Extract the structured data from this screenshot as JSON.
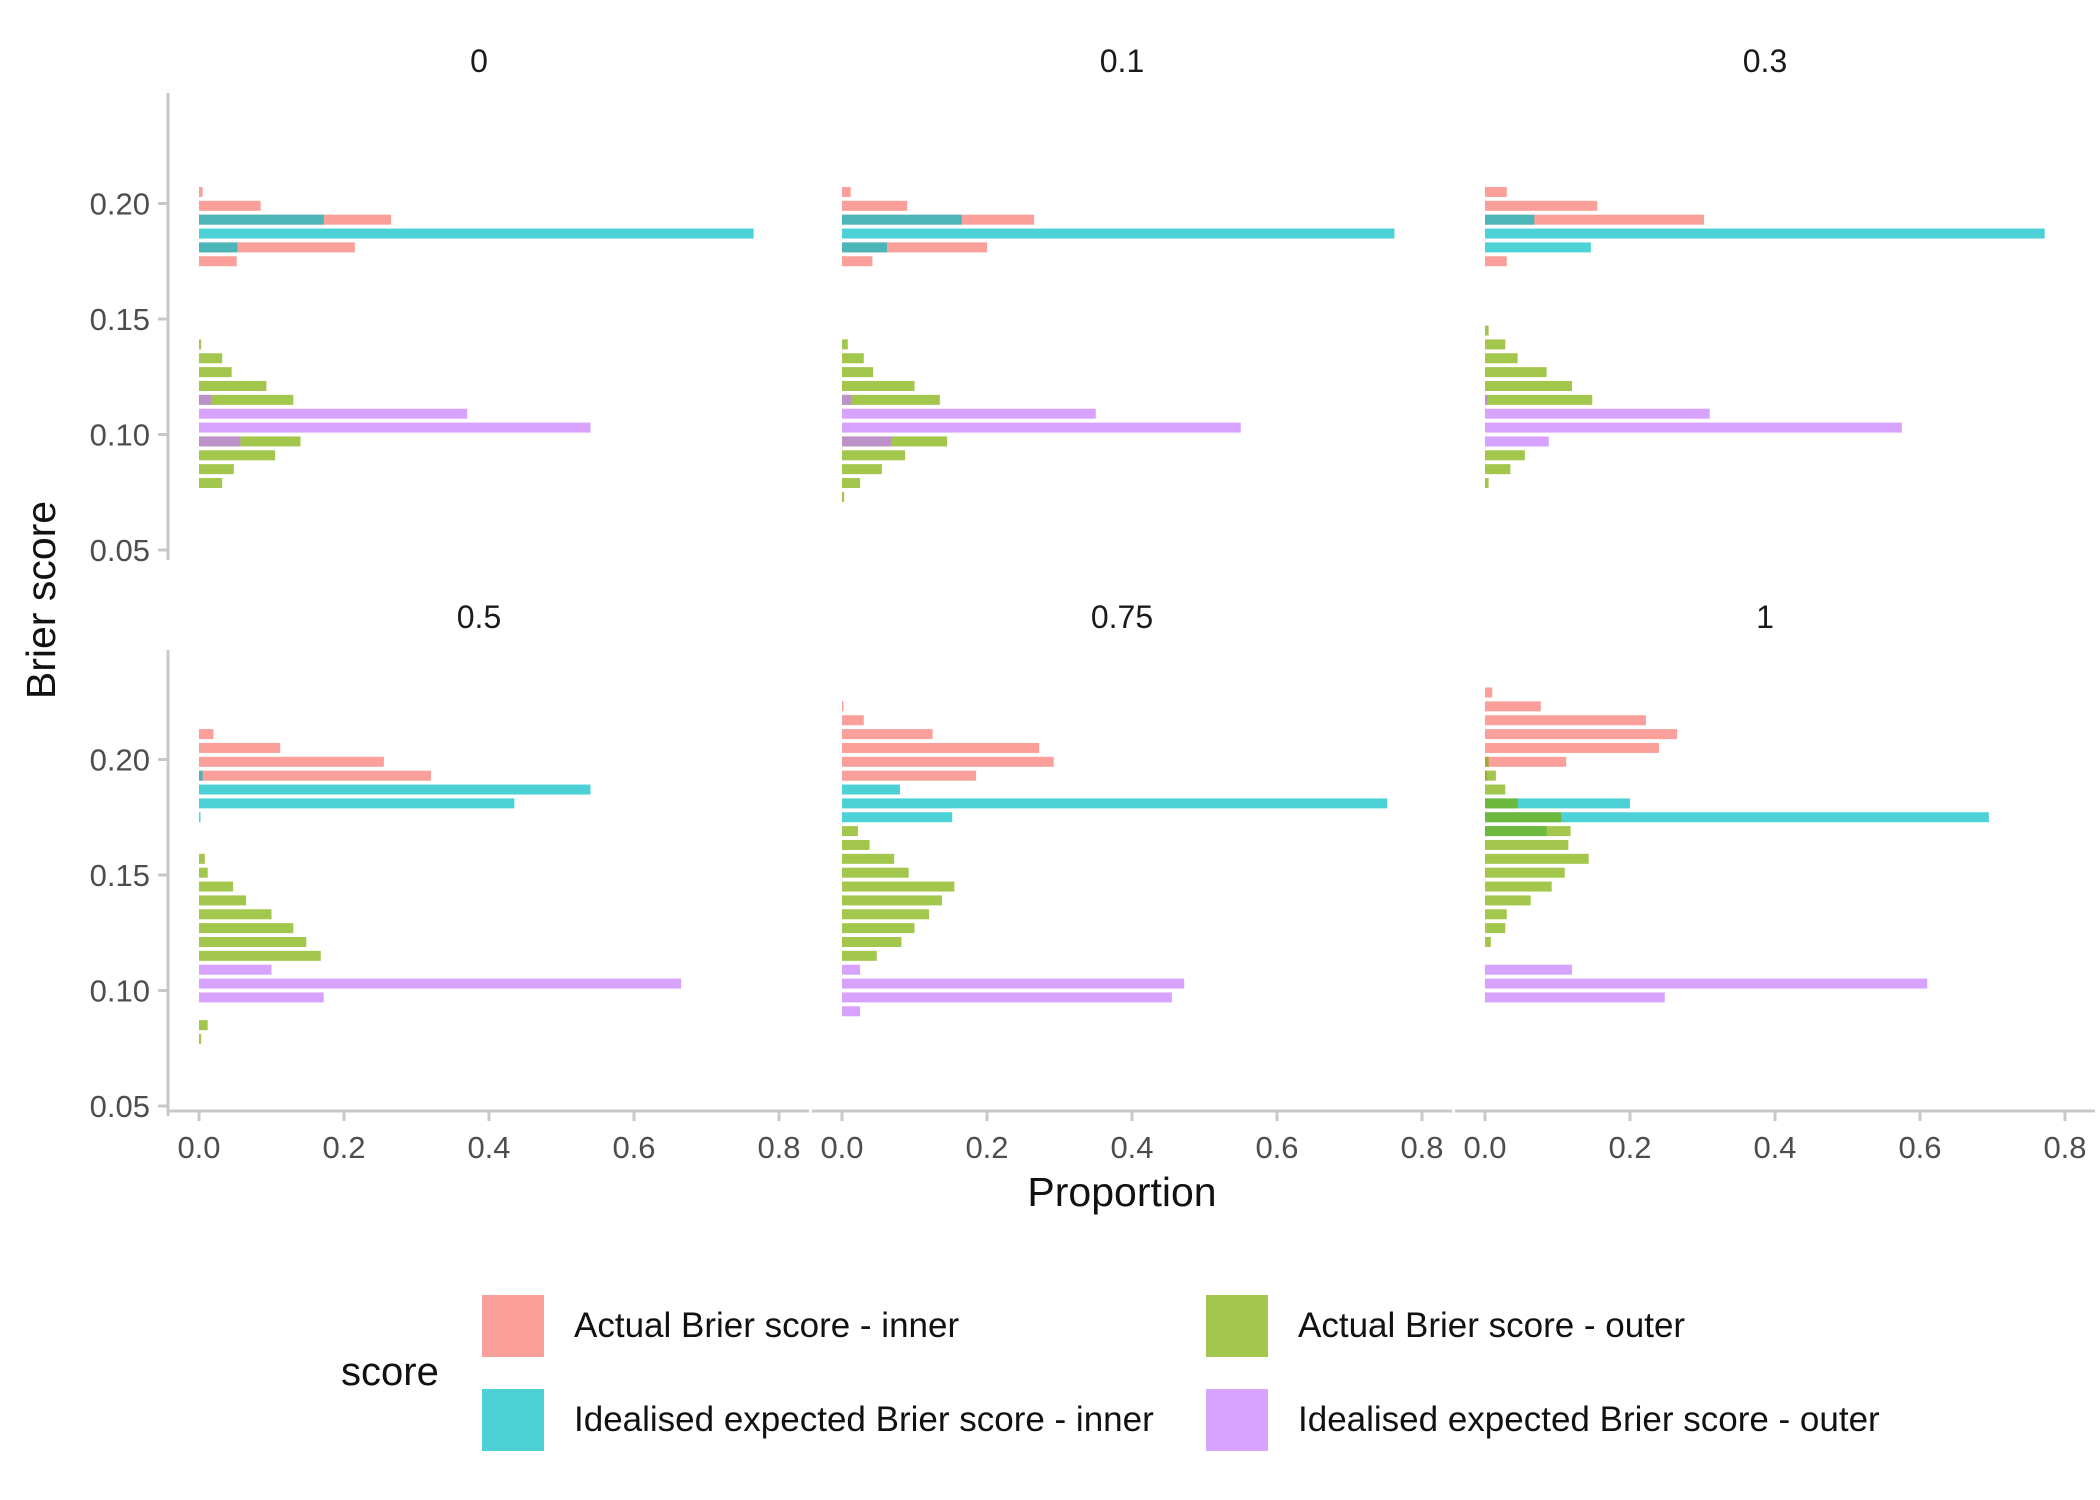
{
  "chart_data": {
    "type": "bar",
    "orientation": "horizontal",
    "layout": "facet-2x3",
    "xlabel": "Proportion",
    "ylabel": "Brier score",
    "xlim": [
      0,
      0.8
    ],
    "ylim": [
      0.05,
      0.25
    ],
    "x_ticks": [
      "0.0",
      "0.2",
      "0.4",
      "0.6",
      "0.8"
    ],
    "y_ticks": [
      "0.05",
      "0.10",
      "0.15",
      "0.20"
    ],
    "y_tick_values": [
      0.05,
      0.1,
      0.15,
      0.2
    ],
    "legend_title": "score",
    "legend_position": "bottom",
    "series": [
      {
        "name": "Actual Brier score - inner",
        "color": "#F8766D"
      },
      {
        "name": "Idealised expected Brier score - inner",
        "color": "#00BFC4"
      },
      {
        "name": "Actual Brier score - outer",
        "color": "#7CAE00"
      },
      {
        "name": "Idealised expected Brier score - outer",
        "color": "#C77CFF"
      }
    ],
    "panels": [
      {
        "title": "0",
        "bars": [
          {
            "series": 0,
            "y": 0.205,
            "value": 0.005
          },
          {
            "series": 0,
            "y": 0.199,
            "value": 0.085
          },
          {
            "series": 0,
            "y": 0.193,
            "value": 0.265
          },
          {
            "series": 0,
            "y": 0.181,
            "value": 0.215
          },
          {
            "series": 0,
            "y": 0.175,
            "value": 0.052
          },
          {
            "series": 1,
            "y": 0.193,
            "value": 0.172
          },
          {
            "series": 1,
            "y": 0.187,
            "value": 0.765
          },
          {
            "series": 1,
            "y": 0.181,
            "value": 0.053
          },
          {
            "series": 2,
            "y": 0.139,
            "value": 0.003
          },
          {
            "series": 2,
            "y": 0.133,
            "value": 0.032
          },
          {
            "series": 2,
            "y": 0.127,
            "value": 0.045
          },
          {
            "series": 2,
            "y": 0.121,
            "value": 0.093
          },
          {
            "series": 2,
            "y": 0.115,
            "value": 0.13
          },
          {
            "series": 2,
            "y": 0.097,
            "value": 0.14
          },
          {
            "series": 2,
            "y": 0.091,
            "value": 0.105
          },
          {
            "series": 2,
            "y": 0.085,
            "value": 0.048
          },
          {
            "series": 2,
            "y": 0.079,
            "value": 0.032
          },
          {
            "series": 3,
            "y": 0.115,
            "value": 0.017
          },
          {
            "series": 3,
            "y": 0.109,
            "value": 0.37
          },
          {
            "series": 3,
            "y": 0.103,
            "value": 0.54
          },
          {
            "series": 3,
            "y": 0.097,
            "value": 0.057
          }
        ]
      },
      {
        "title": "0.1",
        "bars": [
          {
            "series": 0,
            "y": 0.205,
            "value": 0.012
          },
          {
            "series": 0,
            "y": 0.199,
            "value": 0.09
          },
          {
            "series": 0,
            "y": 0.193,
            "value": 0.265
          },
          {
            "series": 0,
            "y": 0.181,
            "value": 0.2
          },
          {
            "series": 0,
            "y": 0.175,
            "value": 0.042
          },
          {
            "series": 1,
            "y": 0.193,
            "value": 0.165
          },
          {
            "series": 1,
            "y": 0.187,
            "value": 0.762
          },
          {
            "series": 1,
            "y": 0.181,
            "value": 0.062
          },
          {
            "series": 2,
            "y": 0.139,
            "value": 0.008
          },
          {
            "series": 2,
            "y": 0.133,
            "value": 0.03
          },
          {
            "series": 2,
            "y": 0.127,
            "value": 0.043
          },
          {
            "series": 2,
            "y": 0.121,
            "value": 0.1
          },
          {
            "series": 2,
            "y": 0.115,
            "value": 0.135
          },
          {
            "series": 2,
            "y": 0.097,
            "value": 0.145
          },
          {
            "series": 2,
            "y": 0.091,
            "value": 0.087
          },
          {
            "series": 2,
            "y": 0.085,
            "value": 0.055
          },
          {
            "series": 2,
            "y": 0.079,
            "value": 0.025
          },
          {
            "series": 2,
            "y": 0.073,
            "value": 0.003
          },
          {
            "series": 3,
            "y": 0.115,
            "value": 0.013
          },
          {
            "series": 3,
            "y": 0.109,
            "value": 0.35
          },
          {
            "series": 3,
            "y": 0.103,
            "value": 0.55
          },
          {
            "series": 3,
            "y": 0.097,
            "value": 0.068
          }
        ]
      },
      {
        "title": "0.3",
        "bars": [
          {
            "series": 0,
            "y": 0.205,
            "value": 0.03
          },
          {
            "series": 0,
            "y": 0.199,
            "value": 0.155
          },
          {
            "series": 0,
            "y": 0.193,
            "value": 0.302
          },
          {
            "series": 0,
            "y": 0.175,
            "value": 0.03
          },
          {
            "series": 1,
            "y": 0.193,
            "value": 0.068
          },
          {
            "series": 1,
            "y": 0.187,
            "value": 0.772
          },
          {
            "series": 1,
            "y": 0.181,
            "value": 0.146
          },
          {
            "series": 2,
            "y": 0.145,
            "value": 0.005
          },
          {
            "series": 2,
            "y": 0.139,
            "value": 0.028
          },
          {
            "series": 2,
            "y": 0.133,
            "value": 0.045
          },
          {
            "series": 2,
            "y": 0.127,
            "value": 0.085
          },
          {
            "series": 2,
            "y": 0.121,
            "value": 0.12
          },
          {
            "series": 2,
            "y": 0.115,
            "value": 0.148
          },
          {
            "series": 2,
            "y": 0.091,
            "value": 0.055
          },
          {
            "series": 2,
            "y": 0.085,
            "value": 0.035
          },
          {
            "series": 2,
            "y": 0.079,
            "value": 0.005
          },
          {
            "series": 3,
            "y": 0.115,
            "value": 0.003
          },
          {
            "series": 3,
            "y": 0.109,
            "value": 0.31
          },
          {
            "series": 3,
            "y": 0.103,
            "value": 0.575
          },
          {
            "series": 3,
            "y": 0.097,
            "value": 0.088
          }
        ]
      },
      {
        "title": "0.5",
        "bars": [
          {
            "series": 0,
            "y": 0.211,
            "value": 0.02
          },
          {
            "series": 0,
            "y": 0.205,
            "value": 0.112
          },
          {
            "series": 0,
            "y": 0.199,
            "value": 0.255
          },
          {
            "series": 0,
            "y": 0.193,
            "value": 0.32
          },
          {
            "series": 1,
            "y": 0.193,
            "value": 0.005
          },
          {
            "series": 1,
            "y": 0.187,
            "value": 0.54
          },
          {
            "series": 1,
            "y": 0.181,
            "value": 0.435
          },
          {
            "series": 1,
            "y": 0.175,
            "value": 0.002
          },
          {
            "series": 2,
            "y": 0.157,
            "value": 0.008
          },
          {
            "series": 2,
            "y": 0.151,
            "value": 0.012
          },
          {
            "series": 2,
            "y": 0.145,
            "value": 0.047
          },
          {
            "series": 2,
            "y": 0.139,
            "value": 0.065
          },
          {
            "series": 2,
            "y": 0.133,
            "value": 0.1
          },
          {
            "series": 2,
            "y": 0.127,
            "value": 0.13
          },
          {
            "series": 2,
            "y": 0.121,
            "value": 0.148
          },
          {
            "series": 2,
            "y": 0.115,
            "value": 0.168
          },
          {
            "series": 2,
            "y": 0.085,
            "value": 0.012
          },
          {
            "series": 2,
            "y": 0.079,
            "value": 0.003
          },
          {
            "series": 3,
            "y": 0.109,
            "value": 0.1
          },
          {
            "series": 3,
            "y": 0.103,
            "value": 0.665
          },
          {
            "series": 3,
            "y": 0.097,
            "value": 0.172
          }
        ]
      },
      {
        "title": "0.75",
        "bars": [
          {
            "series": 0,
            "y": 0.223,
            "value": 0.002
          },
          {
            "series": 0,
            "y": 0.217,
            "value": 0.03
          },
          {
            "series": 0,
            "y": 0.211,
            "value": 0.125
          },
          {
            "series": 0,
            "y": 0.205,
            "value": 0.272
          },
          {
            "series": 0,
            "y": 0.199,
            "value": 0.292
          },
          {
            "series": 0,
            "y": 0.193,
            "value": 0.185
          },
          {
            "series": 1,
            "y": 0.187,
            "value": 0.08
          },
          {
            "series": 1,
            "y": 0.181,
            "value": 0.752
          },
          {
            "series": 1,
            "y": 0.175,
            "value": 0.152
          },
          {
            "series": 2,
            "y": 0.169,
            "value": 0.022
          },
          {
            "series": 2,
            "y": 0.163,
            "value": 0.038
          },
          {
            "series": 2,
            "y": 0.157,
            "value": 0.072
          },
          {
            "series": 2,
            "y": 0.151,
            "value": 0.092
          },
          {
            "series": 2,
            "y": 0.145,
            "value": 0.155
          },
          {
            "series": 2,
            "y": 0.139,
            "value": 0.138
          },
          {
            "series": 2,
            "y": 0.133,
            "value": 0.12
          },
          {
            "series": 2,
            "y": 0.127,
            "value": 0.1
          },
          {
            "series": 2,
            "y": 0.121,
            "value": 0.082
          },
          {
            "series": 2,
            "y": 0.115,
            "value": 0.048
          },
          {
            "series": 3,
            "y": 0.109,
            "value": 0.025
          },
          {
            "series": 3,
            "y": 0.103,
            "value": 0.472
          },
          {
            "series": 3,
            "y": 0.097,
            "value": 0.455
          },
          {
            "series": 3,
            "y": 0.091,
            "value": 0.025
          }
        ]
      },
      {
        "title": "1",
        "bars": [
          {
            "series": 0,
            "y": 0.229,
            "value": 0.01
          },
          {
            "series": 0,
            "y": 0.223,
            "value": 0.077
          },
          {
            "series": 0,
            "y": 0.217,
            "value": 0.222
          },
          {
            "series": 0,
            "y": 0.211,
            "value": 0.265
          },
          {
            "series": 0,
            "y": 0.205,
            "value": 0.24
          },
          {
            "series": 0,
            "y": 0.199,
            "value": 0.112
          },
          {
            "series": 0,
            "y": 0.193,
            "value": 0.003
          },
          {
            "series": 1,
            "y": 0.181,
            "value": 0.2
          },
          {
            "series": 1,
            "y": 0.175,
            "value": 0.695
          },
          {
            "series": 1,
            "y": 0.169,
            "value": 0.085
          },
          {
            "series": 2,
            "y": 0.199,
            "value": 0.005
          },
          {
            "series": 2,
            "y": 0.193,
            "value": 0.015
          },
          {
            "series": 2,
            "y": 0.187,
            "value": 0.028
          },
          {
            "series": 2,
            "y": 0.181,
            "value": 0.045
          },
          {
            "series": 2,
            "y": 0.175,
            "value": 0.105
          },
          {
            "series": 2,
            "y": 0.169,
            "value": 0.118
          },
          {
            "series": 2,
            "y": 0.163,
            "value": 0.115
          },
          {
            "series": 2,
            "y": 0.157,
            "value": 0.143
          },
          {
            "series": 2,
            "y": 0.151,
            "value": 0.11
          },
          {
            "series": 2,
            "y": 0.145,
            "value": 0.092
          },
          {
            "series": 2,
            "y": 0.139,
            "value": 0.063
          },
          {
            "series": 2,
            "y": 0.133,
            "value": 0.03
          },
          {
            "series": 2,
            "y": 0.127,
            "value": 0.028
          },
          {
            "series": 2,
            "y": 0.121,
            "value": 0.008
          },
          {
            "series": 3,
            "y": 0.109,
            "value": 0.12
          },
          {
            "series": 3,
            "y": 0.103,
            "value": 0.61
          },
          {
            "series": 3,
            "y": 0.097,
            "value": 0.248
          }
        ]
      }
    ]
  }
}
